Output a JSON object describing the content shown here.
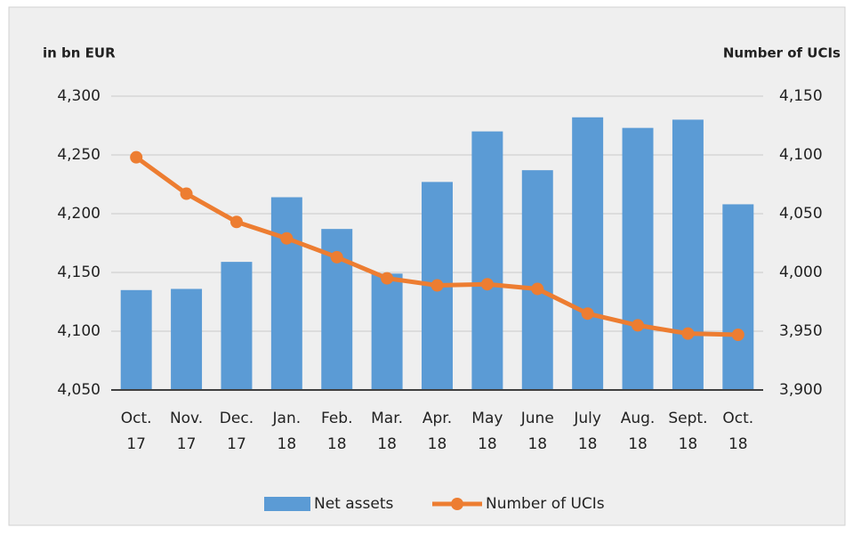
{
  "chart_data": {
    "type": "bar_line",
    "y_label": "in bn EUR",
    "y2_label": "Number of UCIs",
    "categories": [
      "Oct. 17",
      "Nov. 17",
      "Dec. 17",
      "Jan. 18",
      "Feb. 18",
      "Mar. 18",
      "Apr. 18",
      "May 18",
      "June 18",
      "July 18",
      "Aug. 18",
      "Sept. 18",
      "Oct. 18"
    ],
    "series": [
      {
        "name": "Net assets",
        "type": "bar",
        "color": "#5b9bd5",
        "values": [
          4135,
          4136,
          4159,
          4214,
          4187,
          4149,
          4227,
          4270,
          4237,
          4282,
          4273,
          4280,
          4208
        ]
      },
      {
        "name": "Number of UCIs",
        "type": "line",
        "axis": "y2",
        "color": "#ed7d31",
        "values": [
          4098,
          4067,
          4043,
          4029,
          4013,
          3995,
          3989,
          3990,
          3986,
          3965,
          3955,
          3948,
          3947
        ]
      }
    ],
    "ylim": [
      4050,
      4300
    ],
    "yticks": [
      {
        "value": 4050,
        "label": "4,050"
      },
      {
        "value": 4100,
        "label": "4,100"
      },
      {
        "value": 4150,
        "label": "4,150"
      },
      {
        "value": 4200,
        "label": "4,200"
      },
      {
        "value": 4250,
        "label": "4,250"
      },
      {
        "value": 4300,
        "label": "4,300"
      }
    ],
    "y2lim": [
      3900,
      4150
    ],
    "y2ticks": [
      {
        "value": 3900,
        "label": "3,900"
      },
      {
        "value": 3950,
        "label": "3,950"
      },
      {
        "value": 4000,
        "label": "4,000"
      },
      {
        "value": 4050,
        "label": "4,050"
      },
      {
        "value": 4100,
        "label": "4,100"
      },
      {
        "value": 4150,
        "label": "4,150"
      }
    ],
    "grid": true,
    "legend": "bottom"
  }
}
